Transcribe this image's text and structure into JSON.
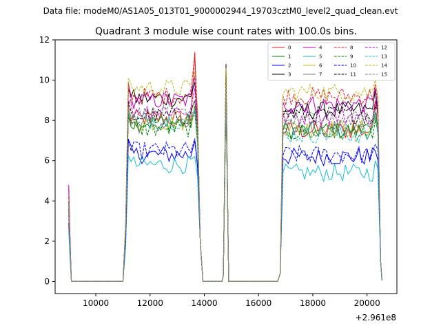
{
  "figure": {
    "suptitle": "Data file: modeM0/AS1A05_013T01_9000002944_19703cztM0_level2_quad_clean.evt",
    "title": "Quadrant 3 module wise count rates with 100.0s bins.",
    "x_offset_label": "+2.961e8"
  },
  "chart_data": {
    "type": "line",
    "xlim": [
      8500,
      21100
    ],
    "ylim": [
      -0.6,
      12
    ],
    "x_ticks": [
      10000,
      12000,
      14000,
      16000,
      18000,
      20000
    ],
    "x_tick_labels": [
      "10000",
      "12000",
      "14000",
      "16000",
      "18000",
      "20000"
    ],
    "y_ticks": [
      0,
      2,
      4,
      6,
      8,
      10,
      12
    ],
    "y_tick_labels": [
      "0",
      "2",
      "4",
      "6",
      "8",
      "10",
      "12"
    ],
    "grid": false,
    "legend_placement": "top-right",
    "series": [
      {
        "name": "0",
        "color": "#e41a1c",
        "dash": "solid",
        "start": 4.6,
        "base": 8.1,
        "base2": 7.5,
        "spike1": 11.4,
        "spike2": 10.5,
        "end": 8.9
      },
      {
        "name": "1",
        "color": "#008000",
        "dash": "solid",
        "start": 3.9,
        "base": 7.9,
        "base2": 7.5,
        "spike1": 8.7,
        "spike2": 9.3,
        "end": 8.4
      },
      {
        "name": "2",
        "color": "#0000ff",
        "dash": "solid",
        "start": 2.9,
        "base": 6.3,
        "base2": 6.2,
        "spike1": 7.0,
        "spike2": 9.4,
        "end": 6.5
      },
      {
        "name": "3",
        "color": "#000000",
        "dash": "solid",
        "start": 3.6,
        "base": 9.1,
        "base2": 8.5,
        "spike1": 9.9,
        "spike2": 10.8,
        "end": 9.5
      },
      {
        "name": "4",
        "color": "#bf00bf",
        "dash": "solid",
        "start": 4.8,
        "base": 9.0,
        "base2": 8.8,
        "spike1": 10.2,
        "spike2": 10.0,
        "end": 9.6
      },
      {
        "name": "5",
        "color": "#17becf",
        "dash": "solid",
        "start": 2.5,
        "base": 5.8,
        "base2": 5.4,
        "spike1": 6.2,
        "spike2": 9.0,
        "end": 6.0
      },
      {
        "name": "6",
        "color": "#bcbd22",
        "dash": "solid",
        "start": 3.5,
        "base": 7.9,
        "base2": 7.6,
        "spike1": 8.6,
        "spike2": 9.2,
        "end": 8.2
      },
      {
        "name": "7",
        "color": "#808080",
        "dash": "solid",
        "start": 3.4,
        "base": 7.8,
        "base2": 7.6,
        "spike1": 8.5,
        "spike2": 9.3,
        "end": 8.1
      },
      {
        "name": "8",
        "color": "#e41a1c",
        "dash": "dashed",
        "start": 4.2,
        "base": 9.2,
        "base2": 9.2,
        "spike1": 11.2,
        "spike2": 10.1,
        "end": 9.8
      },
      {
        "name": "9",
        "color": "#008000",
        "dash": "dashed",
        "start": 3.7,
        "base": 7.6,
        "base2": 7.4,
        "spike1": 8.4,
        "spike2": 9.1,
        "end": 8.0
      },
      {
        "name": "10",
        "color": "#0000ff",
        "dash": "dashed",
        "start": 3.3,
        "base": 6.5,
        "base2": 6.3,
        "spike1": 7.1,
        "spike2": 9.6,
        "end": 6.8
      },
      {
        "name": "11",
        "color": "#000000",
        "dash": "dashed",
        "start": 3.9,
        "base": 8.2,
        "base2": 8.3,
        "spike1": 9.0,
        "spike2": 10.2,
        "end": 8.7
      },
      {
        "name": "12",
        "color": "#bf00bf",
        "dash": "dashed",
        "start": 4.0,
        "base": 8.5,
        "base2": 8.2,
        "spike1": 9.6,
        "spike2": 9.8,
        "end": 9.0
      },
      {
        "name": "13",
        "color": "#17becf",
        "dash": "dashed",
        "start": 3.8,
        "base": 8.0,
        "base2": 7.3,
        "spike1": 8.5,
        "spike2": 9.2,
        "end": 8.4
      },
      {
        "name": "14",
        "color": "#bcbd22",
        "dash": "dashed",
        "start": 4.1,
        "base": 9.6,
        "base2": 9.4,
        "spike1": 10.4,
        "spike2": 10.6,
        "end": 10.0
      },
      {
        "name": "15",
        "color": "#808080",
        "dash": "dashed",
        "start": 3.6,
        "base": 8.3,
        "base2": 8.0,
        "spike1": 9.0,
        "spike2": 9.5,
        "end": 8.6
      }
    ]
  }
}
